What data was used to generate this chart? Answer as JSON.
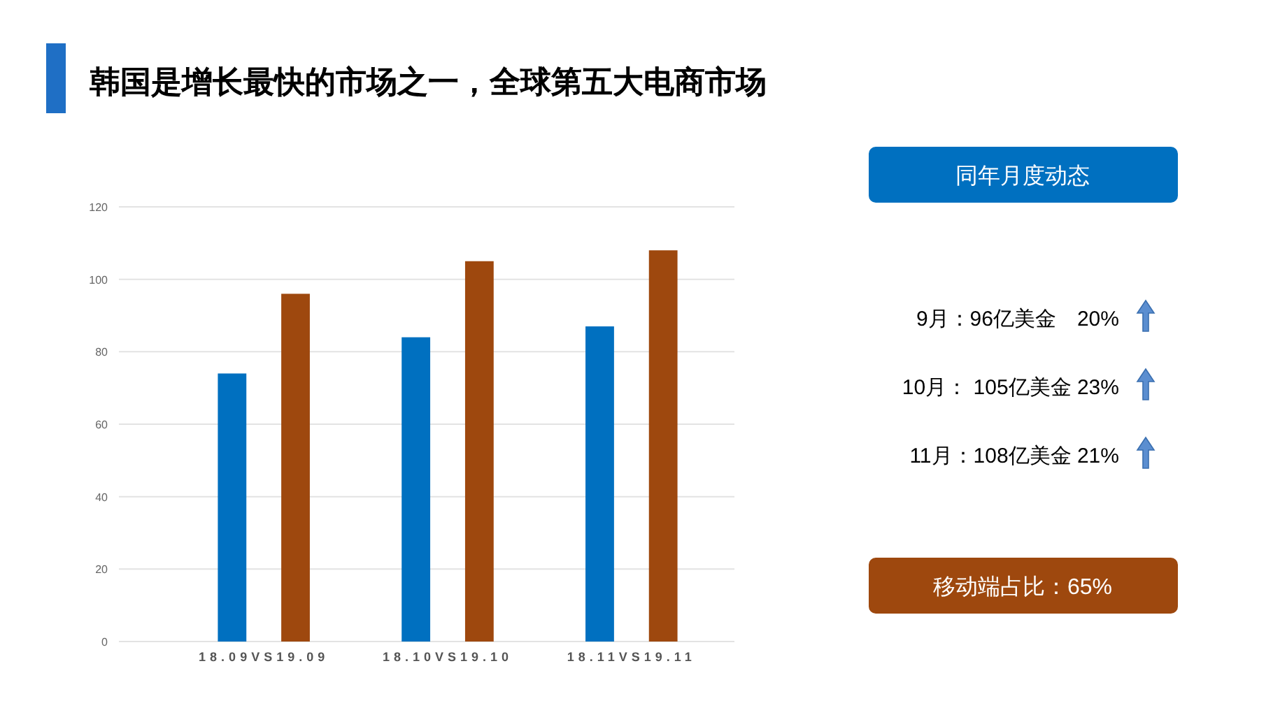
{
  "chart_data": {
    "type": "bar",
    "title": "韩国是增长最快的市场之一，全球第五大电商市场",
    "categories": [
      "18.09VS19.09",
      "18.10VS19.10",
      "18.11VS19.11"
    ],
    "series": [
      {
        "color": "#0070c0",
        "values": [
          74,
          84,
          87
        ]
      },
      {
        "color": "#9e480e",
        "values": [
          96,
          105,
          108
        ]
      }
    ],
    "ylim": [
      0,
      120
    ],
    "yticks": [
      0,
      20,
      40,
      60,
      80,
      100,
      120
    ],
    "grid": "y",
    "annotations": [
      "同年月度动态",
      "9月：96亿美金　20%",
      "10月： 105亿美金 23%",
      "11月：108亿美金 21%",
      "移动端占比：65%"
    ]
  }
}
